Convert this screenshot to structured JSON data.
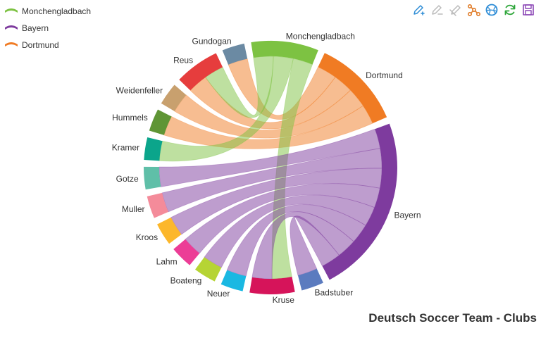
{
  "chart_data": {
    "type": "chord",
    "title": "Deutsch Soccer Team - Clubs",
    "legend_position": "top-left",
    "legend": [
      {
        "name": "Monchengladbach",
        "color": "#7dc242"
      },
      {
        "name": "Bayern",
        "color": "#7e3b9e"
      },
      {
        "name": "Dortmund",
        "color": "#f07b23"
      }
    ],
    "nodes": [
      {
        "name": "Gundogan",
        "color": "#6b8aa3"
      },
      {
        "name": "Monchengladbach",
        "color": "#7dc242"
      },
      {
        "name": "Dortmund",
        "color": "#f07b23"
      },
      {
        "name": "Bayern",
        "color": "#7e3b9e"
      },
      {
        "name": "Badstuber",
        "color": "#5b7bbf"
      },
      {
        "name": "Kruse",
        "color": "#d6145a"
      },
      {
        "name": "Neuer",
        "color": "#1ab8e2"
      },
      {
        "name": "Boateng",
        "color": "#b6d434"
      },
      {
        "name": "Lahm",
        "color": "#ec3d96"
      },
      {
        "name": "Kroos",
        "color": "#fcb72b"
      },
      {
        "name": "Muller",
        "color": "#f48b9a"
      },
      {
        "name": "Gotze",
        "color": "#5fbfa8"
      },
      {
        "name": "Kramer",
        "color": "#0ba58b"
      },
      {
        "name": "Hummels",
        "color": "#5f9535"
      },
      {
        "name": "Weidenfeller",
        "color": "#c8a06e"
      },
      {
        "name": "Reus",
        "color": "#e63d3d"
      }
    ],
    "links": [
      {
        "source": "Gundogan",
        "target": "Dortmund",
        "value": 1
      },
      {
        "source": "Reus",
        "target": "Dortmund",
        "value": 1
      },
      {
        "source": "Weidenfeller",
        "target": "Dortmund",
        "value": 1
      },
      {
        "source": "Hummels",
        "target": "Dortmund",
        "value": 1
      },
      {
        "source": "Reus",
        "target": "Monchengladbach",
        "value": 1
      },
      {
        "source": "Kramer",
        "target": "Monchengladbach",
        "value": 1
      },
      {
        "source": "Kruse",
        "target": "Monchengladbach",
        "value": 1
      },
      {
        "source": "Gotze",
        "target": "Bayern",
        "value": 1
      },
      {
        "source": "Muller",
        "target": "Bayern",
        "value": 1
      },
      {
        "source": "Kroos",
        "target": "Bayern",
        "value": 1
      },
      {
        "source": "Lahm",
        "target": "Bayern",
        "value": 1
      },
      {
        "source": "Boateng",
        "target": "Bayern",
        "value": 1
      },
      {
        "source": "Neuer",
        "target": "Bayern",
        "value": 1
      },
      {
        "source": "Kruse",
        "target": "Bayern",
        "value": 1
      },
      {
        "source": "Badstuber",
        "target": "Bayern",
        "value": 1
      }
    ]
  },
  "toolbar": [
    {
      "name": "mark-icon",
      "color": "#2f8dd6"
    },
    {
      "name": "mark-undo-icon",
      "color": "#bbbbbb"
    },
    {
      "name": "mark-clear-icon",
      "color": "#bbbbbb"
    },
    {
      "name": "force-layout-icon",
      "color": "#e07b27"
    },
    {
      "name": "chord-layout-icon",
      "color": "#2f8dd6"
    },
    {
      "name": "refresh-icon",
      "color": "#2ea63a"
    },
    {
      "name": "save-image-icon",
      "color": "#8a45b5"
    }
  ]
}
